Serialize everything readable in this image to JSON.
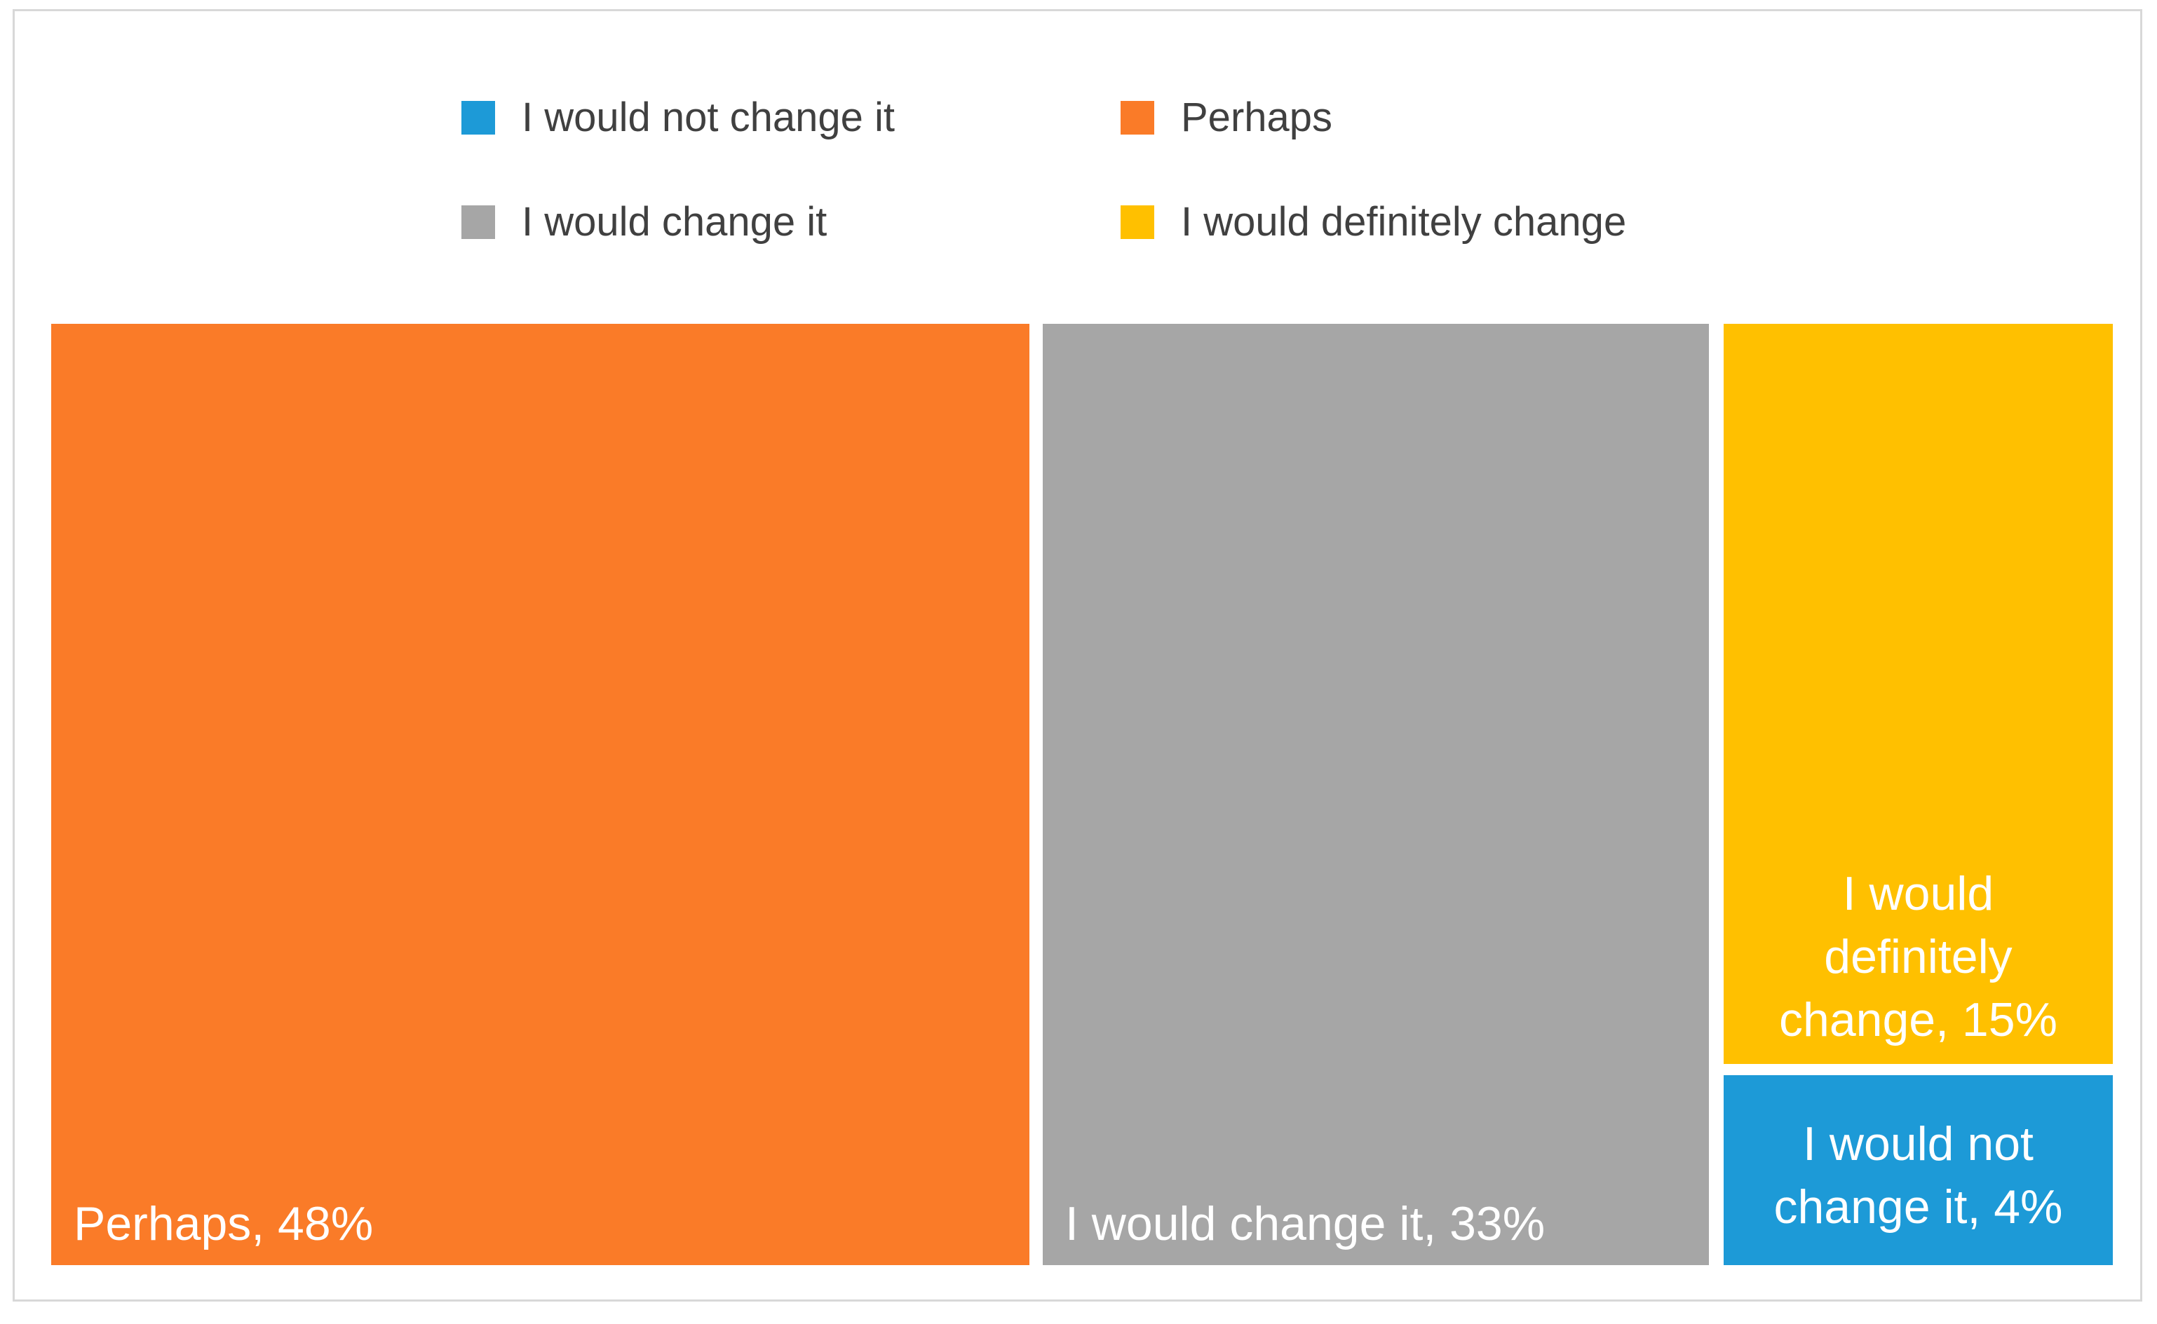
{
  "chart_data": {
    "type": "treemap",
    "title": "",
    "unit": "percent",
    "categories": [
      "Perhaps",
      "I would change it",
      "I would definitely change",
      "I would not change it"
    ],
    "values": [
      48,
      33,
      15,
      4
    ],
    "legend": {
      "position": "top-center",
      "rows": 2,
      "entries": [
        {
          "label": "I would not change it",
          "color": "#1D9AD7"
        },
        {
          "label": "Perhaps",
          "color": "#FA7B28"
        },
        {
          "label": "I would change it",
          "color": "#A6A6A6"
        },
        {
          "label": "I would definitely change",
          "color": "#FFC000"
        }
      ]
    },
    "points": [
      {
        "category": "Perhaps",
        "value_pct": 48,
        "color": "#FA7B28",
        "data_label": "Perhaps, 48%",
        "label_lines": [
          "Perhaps, 48%"
        ],
        "label_align": "bottom-left"
      },
      {
        "category": "I would change it",
        "value_pct": 33,
        "color": "#A6A6A6",
        "data_label": "I would change it, 33%",
        "label_lines": [
          "I would change it, 33%"
        ],
        "label_align": "bottom-left"
      },
      {
        "category": "I would definitely change",
        "value_pct": 15,
        "color": "#FFC000",
        "data_label": "I would definitely change, 15%",
        "label_lines": [
          "I would",
          "definitely",
          "change, 15%"
        ],
        "label_align": "bottom-center"
      },
      {
        "category": "I would not change it",
        "value_pct": 4,
        "color": "#1D9AD7",
        "data_label": "I would not change it, 4%",
        "label_lines": [
          "I would not",
          "change it, 4%"
        ],
        "label_align": "center"
      }
    ],
    "styles": {
      "label_text_color": "#FFFFFF",
      "legend_text_color": "#404040",
      "frame_border_color": "#D8D8D8",
      "background_color": "#FFFFFF"
    }
  }
}
